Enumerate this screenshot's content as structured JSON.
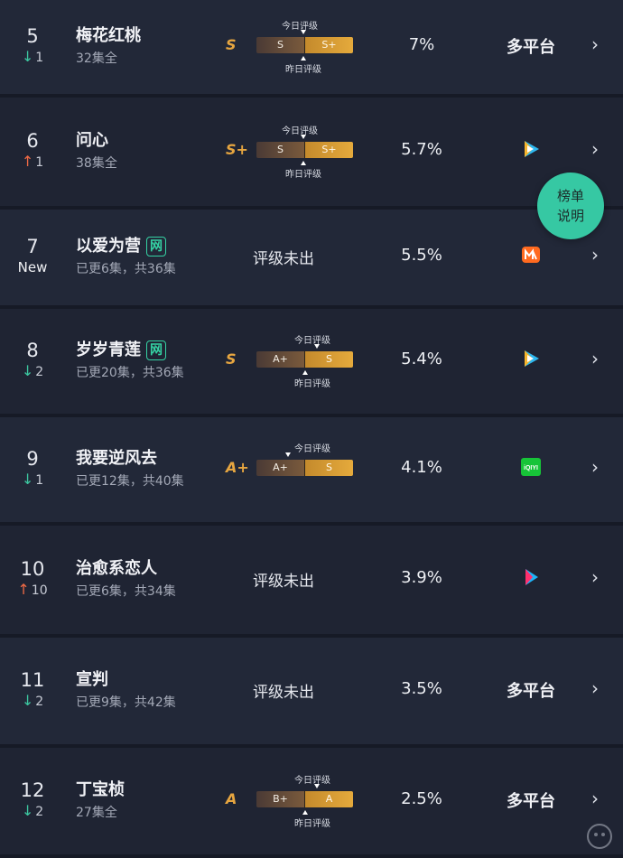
{
  "labels": {
    "today_grade": "今日评级",
    "yesterday_grade": "昨日评级",
    "unrated": "评级未出",
    "multi_platform": "多平台",
    "help_line1": "榜单",
    "help_line2": "说明",
    "net_badge": "网",
    "new_tag": "New"
  },
  "rows": [
    {
      "rank": "5",
      "change_dir": "down",
      "change": "1",
      "title": "梅花红桃",
      "net": false,
      "episodes": "32集全",
      "grade": "S",
      "bar_left": "S",
      "bar_right": "S+",
      "pct": "7%",
      "platform": "multi"
    },
    {
      "rank": "6",
      "change_dir": "up",
      "change": "1",
      "title": "问心",
      "net": false,
      "episodes": "38集全",
      "grade": "S+",
      "bar_left": "S",
      "bar_right": "S+",
      "pct": "5.7%",
      "platform": "tencent-video-icon"
    },
    {
      "rank": "7",
      "change_dir": "new",
      "change": "",
      "title": "以爱为营",
      "net": true,
      "episodes": "已更6集，共36集",
      "grade": "",
      "pct": "5.5%",
      "platform": "mango-tv-icon"
    },
    {
      "rank": "8",
      "change_dir": "down",
      "change": "2",
      "title": "岁岁青莲",
      "net": true,
      "episodes": "已更20集，共36集",
      "grade": "S",
      "bar_left": "A+",
      "bar_right": "S",
      "pct": "5.4%",
      "platform": "tencent-video-icon"
    },
    {
      "rank": "9",
      "change_dir": "down",
      "change": "1",
      "title": "我要逆风去",
      "net": false,
      "episodes": "已更12集，共40集",
      "grade": "A+",
      "bar_left": "A+",
      "bar_right": "S",
      "pct": "4.1%",
      "platform": "iqiyi-icon"
    },
    {
      "rank": "10",
      "change_dir": "up",
      "change": "10",
      "title": "治愈系恋人",
      "net": false,
      "episodes": "已更6集，共34集",
      "grade": "",
      "pct": "3.9%",
      "platform": "youku-icon"
    },
    {
      "rank": "11",
      "change_dir": "down",
      "change": "2",
      "title": "宣判",
      "net": false,
      "episodes": "已更9集，共42集",
      "grade": "",
      "pct": "3.5%",
      "platform": "multi"
    },
    {
      "rank": "12",
      "change_dir": "down",
      "change": "2",
      "title": "丁宝桢",
      "net": false,
      "episodes": "27集全",
      "grade": "A",
      "bar_left": "B+",
      "bar_right": "A",
      "pct": "2.5%",
      "platform": "multi"
    }
  ],
  "colors": {
    "accent_green": "#36c8a3",
    "grade_orange": "#e7a640",
    "down_arrow": "#3cc7a0",
    "up_arrow": "#ef6a45"
  }
}
